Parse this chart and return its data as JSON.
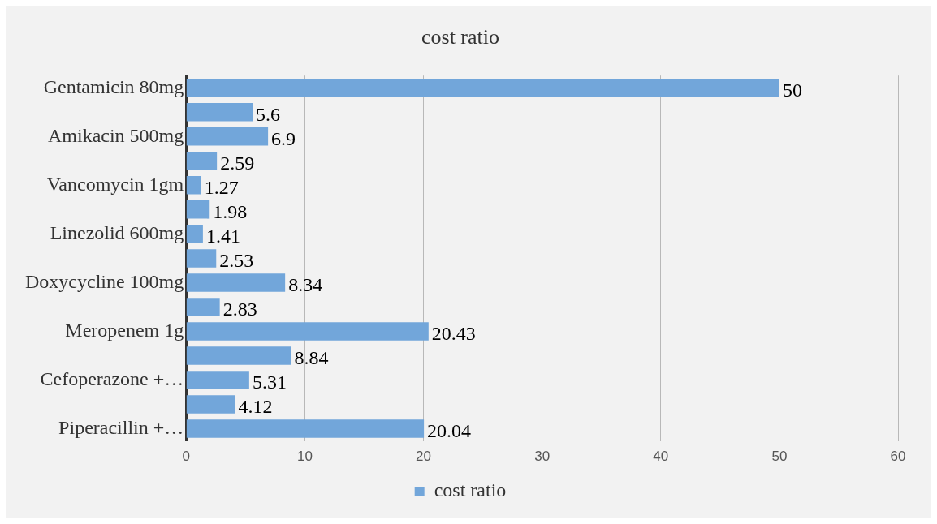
{
  "chart_data": {
    "type": "bar",
    "orientation": "horizontal",
    "title": "cost ratio",
    "categories": [
      "Gentamicin 80mg",
      null,
      "Amikacin 500mg",
      null,
      "Vancomycin 1gm",
      null,
      "Linezolid 600mg",
      null,
      "Doxycycline 100mg",
      null,
      "Meropenem 1g",
      null,
      "Cefoperazone +…",
      null,
      "Piperacillin +…"
    ],
    "series": [
      {
        "name": "cost ratio",
        "color": "#72a6da",
        "values": [
          50,
          5.6,
          6.9,
          2.59,
          1.27,
          1.98,
          1.41,
          2.53,
          8.34,
          2.83,
          20.43,
          8.84,
          5.31,
          4.12,
          20.04
        ]
      }
    ],
    "xlim": [
      0,
      60
    ],
    "xticks": [
      0,
      10,
      20,
      30,
      40,
      50,
      60
    ],
    "grid": "x",
    "legend": "bottom",
    "data_labels": true
  }
}
